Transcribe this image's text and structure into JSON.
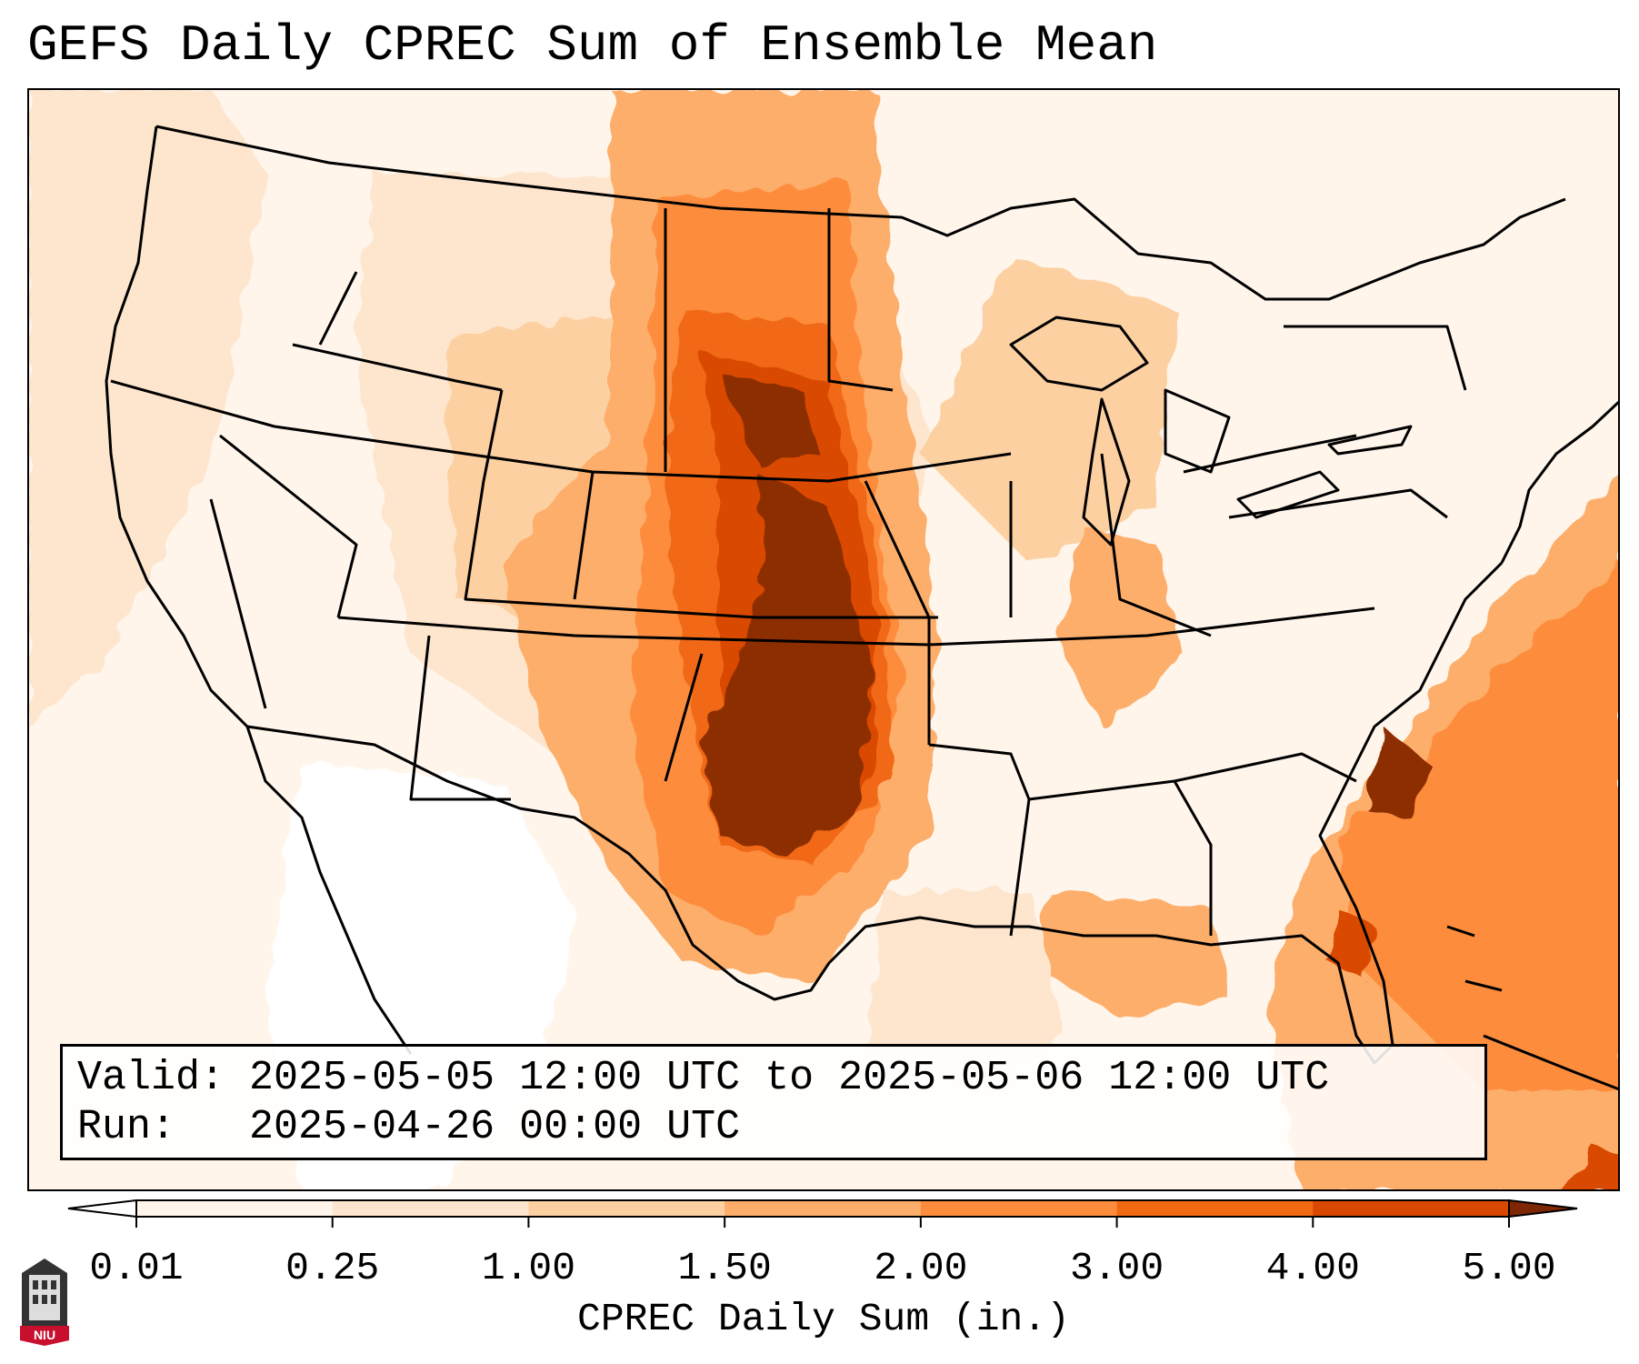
{
  "title": "GEFS Daily CPREC Sum of Ensemble Mean",
  "validity": {
    "valid_label": "Valid:",
    "valid_range": "2025-05-05 12:00 UTC to 2025-05-06 12:00 UTC",
    "run_label": "Run:",
    "run_time": "2025-04-26 00:00 UTC"
  },
  "colorbar": {
    "title": "CPREC Daily Sum (in.)",
    "ticks": [
      "0.01",
      "0.25",
      "1.00",
      "1.50",
      "2.00",
      "3.00",
      "4.00",
      "5.00"
    ],
    "colors": [
      "#fff5eb",
      "#fee6ce",
      "#fdd0a2",
      "#fdae6b",
      "#fd8d3c",
      "#f16913",
      "#d94801",
      "#8c2d04"
    ],
    "over_color": "#7f2704",
    "under_color": "#ffffff"
  },
  "logo": {
    "text": "NIU"
  }
}
